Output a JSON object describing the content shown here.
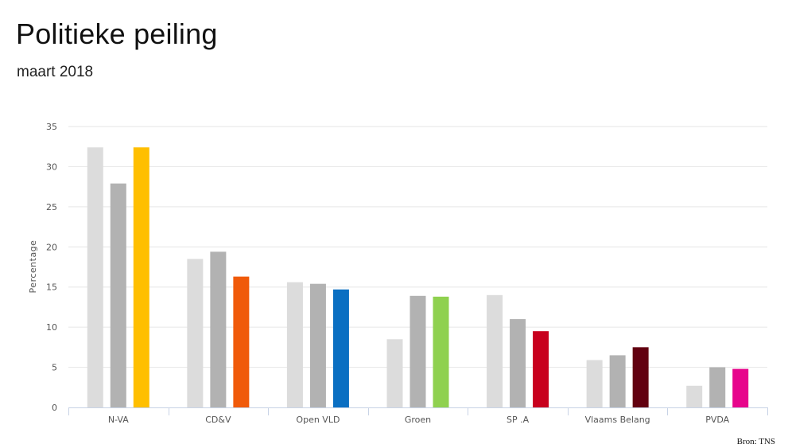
{
  "header": {
    "title": "Politieke peiling",
    "subtitle": "maart 2018"
  },
  "source": "Bron: TNS",
  "chart_data": {
    "type": "bar",
    "title": "Politieke peiling",
    "subtitle": "maart 2018",
    "xlabel": "",
    "ylabel": "Percentage",
    "ylim": [
      0,
      35
    ],
    "yticks": [
      0,
      5,
      10,
      15,
      20,
      25,
      30,
      35
    ],
    "grid": true,
    "legend": "none",
    "categories": [
      "N-VA",
      "CD&V",
      "Open VLD",
      "Groen",
      "SP .A",
      "Vlaams Belang",
      "PVDA"
    ],
    "series": [
      {
        "values": [
          32.4,
          18.5,
          15.6,
          8.5,
          14.0,
          5.9,
          2.7
        ],
        "color": "#dcdcdc"
      },
      {
        "values": [
          27.9,
          19.4,
          15.4,
          13.9,
          11.0,
          6.5,
          5.0
        ],
        "color": "#b2b2b2"
      },
      {
        "values": [
          32.4,
          16.3,
          14.7,
          13.8,
          9.5,
          7.5,
          4.8
        ],
        "colors": [
          "#ffbf00",
          "#f05a0a",
          "#0a6fc2",
          "#8fd14f",
          "#c8001e",
          "#620010",
          "#e7058c"
        ]
      }
    ]
  }
}
